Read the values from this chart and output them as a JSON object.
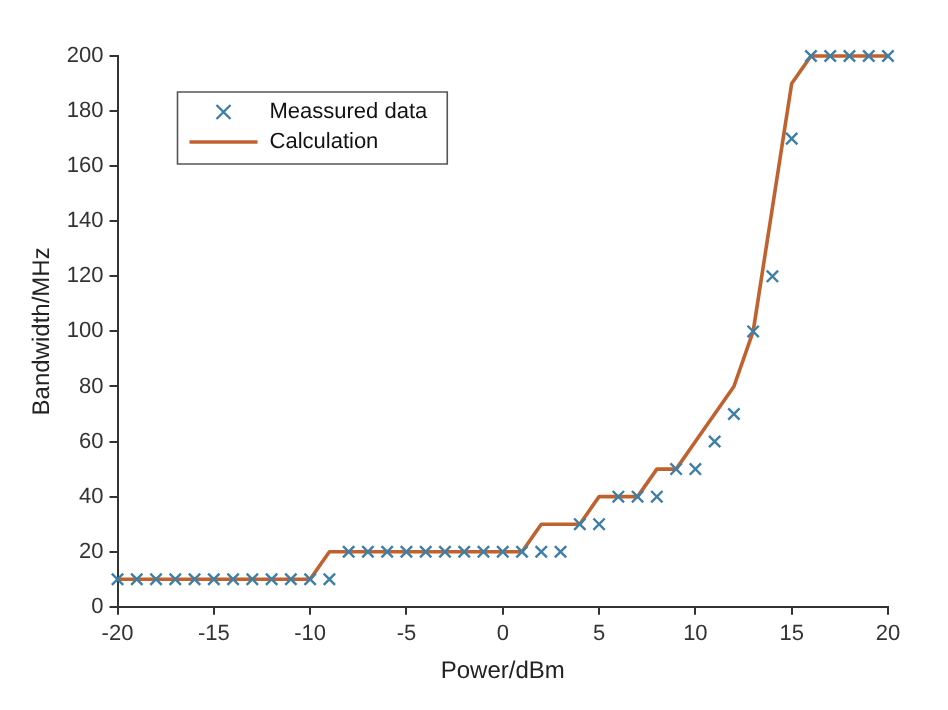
{
  "chart_data": {
    "type": "line",
    "xlabel": "Power/dBm",
    "ylabel": "Bandwidth/MHz",
    "xlim": [
      -20,
      20
    ],
    "xticks": [
      -20,
      -15,
      -10,
      -5,
      0,
      5,
      10,
      15,
      20
    ],
    "ylim": [
      0,
      200
    ],
    "yticks": [
      0,
      20,
      40,
      60,
      80,
      100,
      120,
      140,
      160,
      180,
      200
    ],
    "grid": false,
    "legend": "top left",
    "series": [
      {
        "name": "Meassured data",
        "type": "scatter",
        "marker": "cross",
        "color": "#3d7fa6",
        "x": [
          -20,
          -19,
          -18,
          -17,
          -16,
          -15,
          -14,
          -13,
          -12,
          -11,
          -10,
          -9,
          -8,
          -7,
          -6,
          -5,
          -4,
          -3,
          -2,
          -1,
          0,
          1,
          2,
          3,
          4,
          5,
          6,
          7,
          8,
          9,
          10,
          11,
          12,
          13,
          14,
          15,
          16,
          17,
          18,
          19,
          20
        ],
        "values": [
          10,
          10,
          10,
          10,
          10,
          10,
          10,
          10,
          10,
          10,
          10,
          10,
          20,
          20,
          20,
          20,
          20,
          20,
          20,
          20,
          20,
          20,
          20,
          20,
          30,
          30,
          40,
          40,
          40,
          50,
          50,
          60,
          70,
          100,
          120,
          170,
          200,
          200,
          200,
          200,
          200
        ]
      },
      {
        "name": "Calculation",
        "marker": "none",
        "line_style": "solid",
        "color": "#c0622f",
        "x": [
          -20,
          -10,
          -9,
          1,
          2,
          4,
          5,
          7,
          8,
          9,
          10,
          11,
          12,
          13,
          14,
          15,
          16,
          20
        ],
        "values": [
          10,
          10,
          20,
          20,
          30,
          30,
          40,
          40,
          50,
          50,
          60,
          70,
          80,
          100,
          145,
          190,
          200,
          200
        ]
      }
    ]
  }
}
